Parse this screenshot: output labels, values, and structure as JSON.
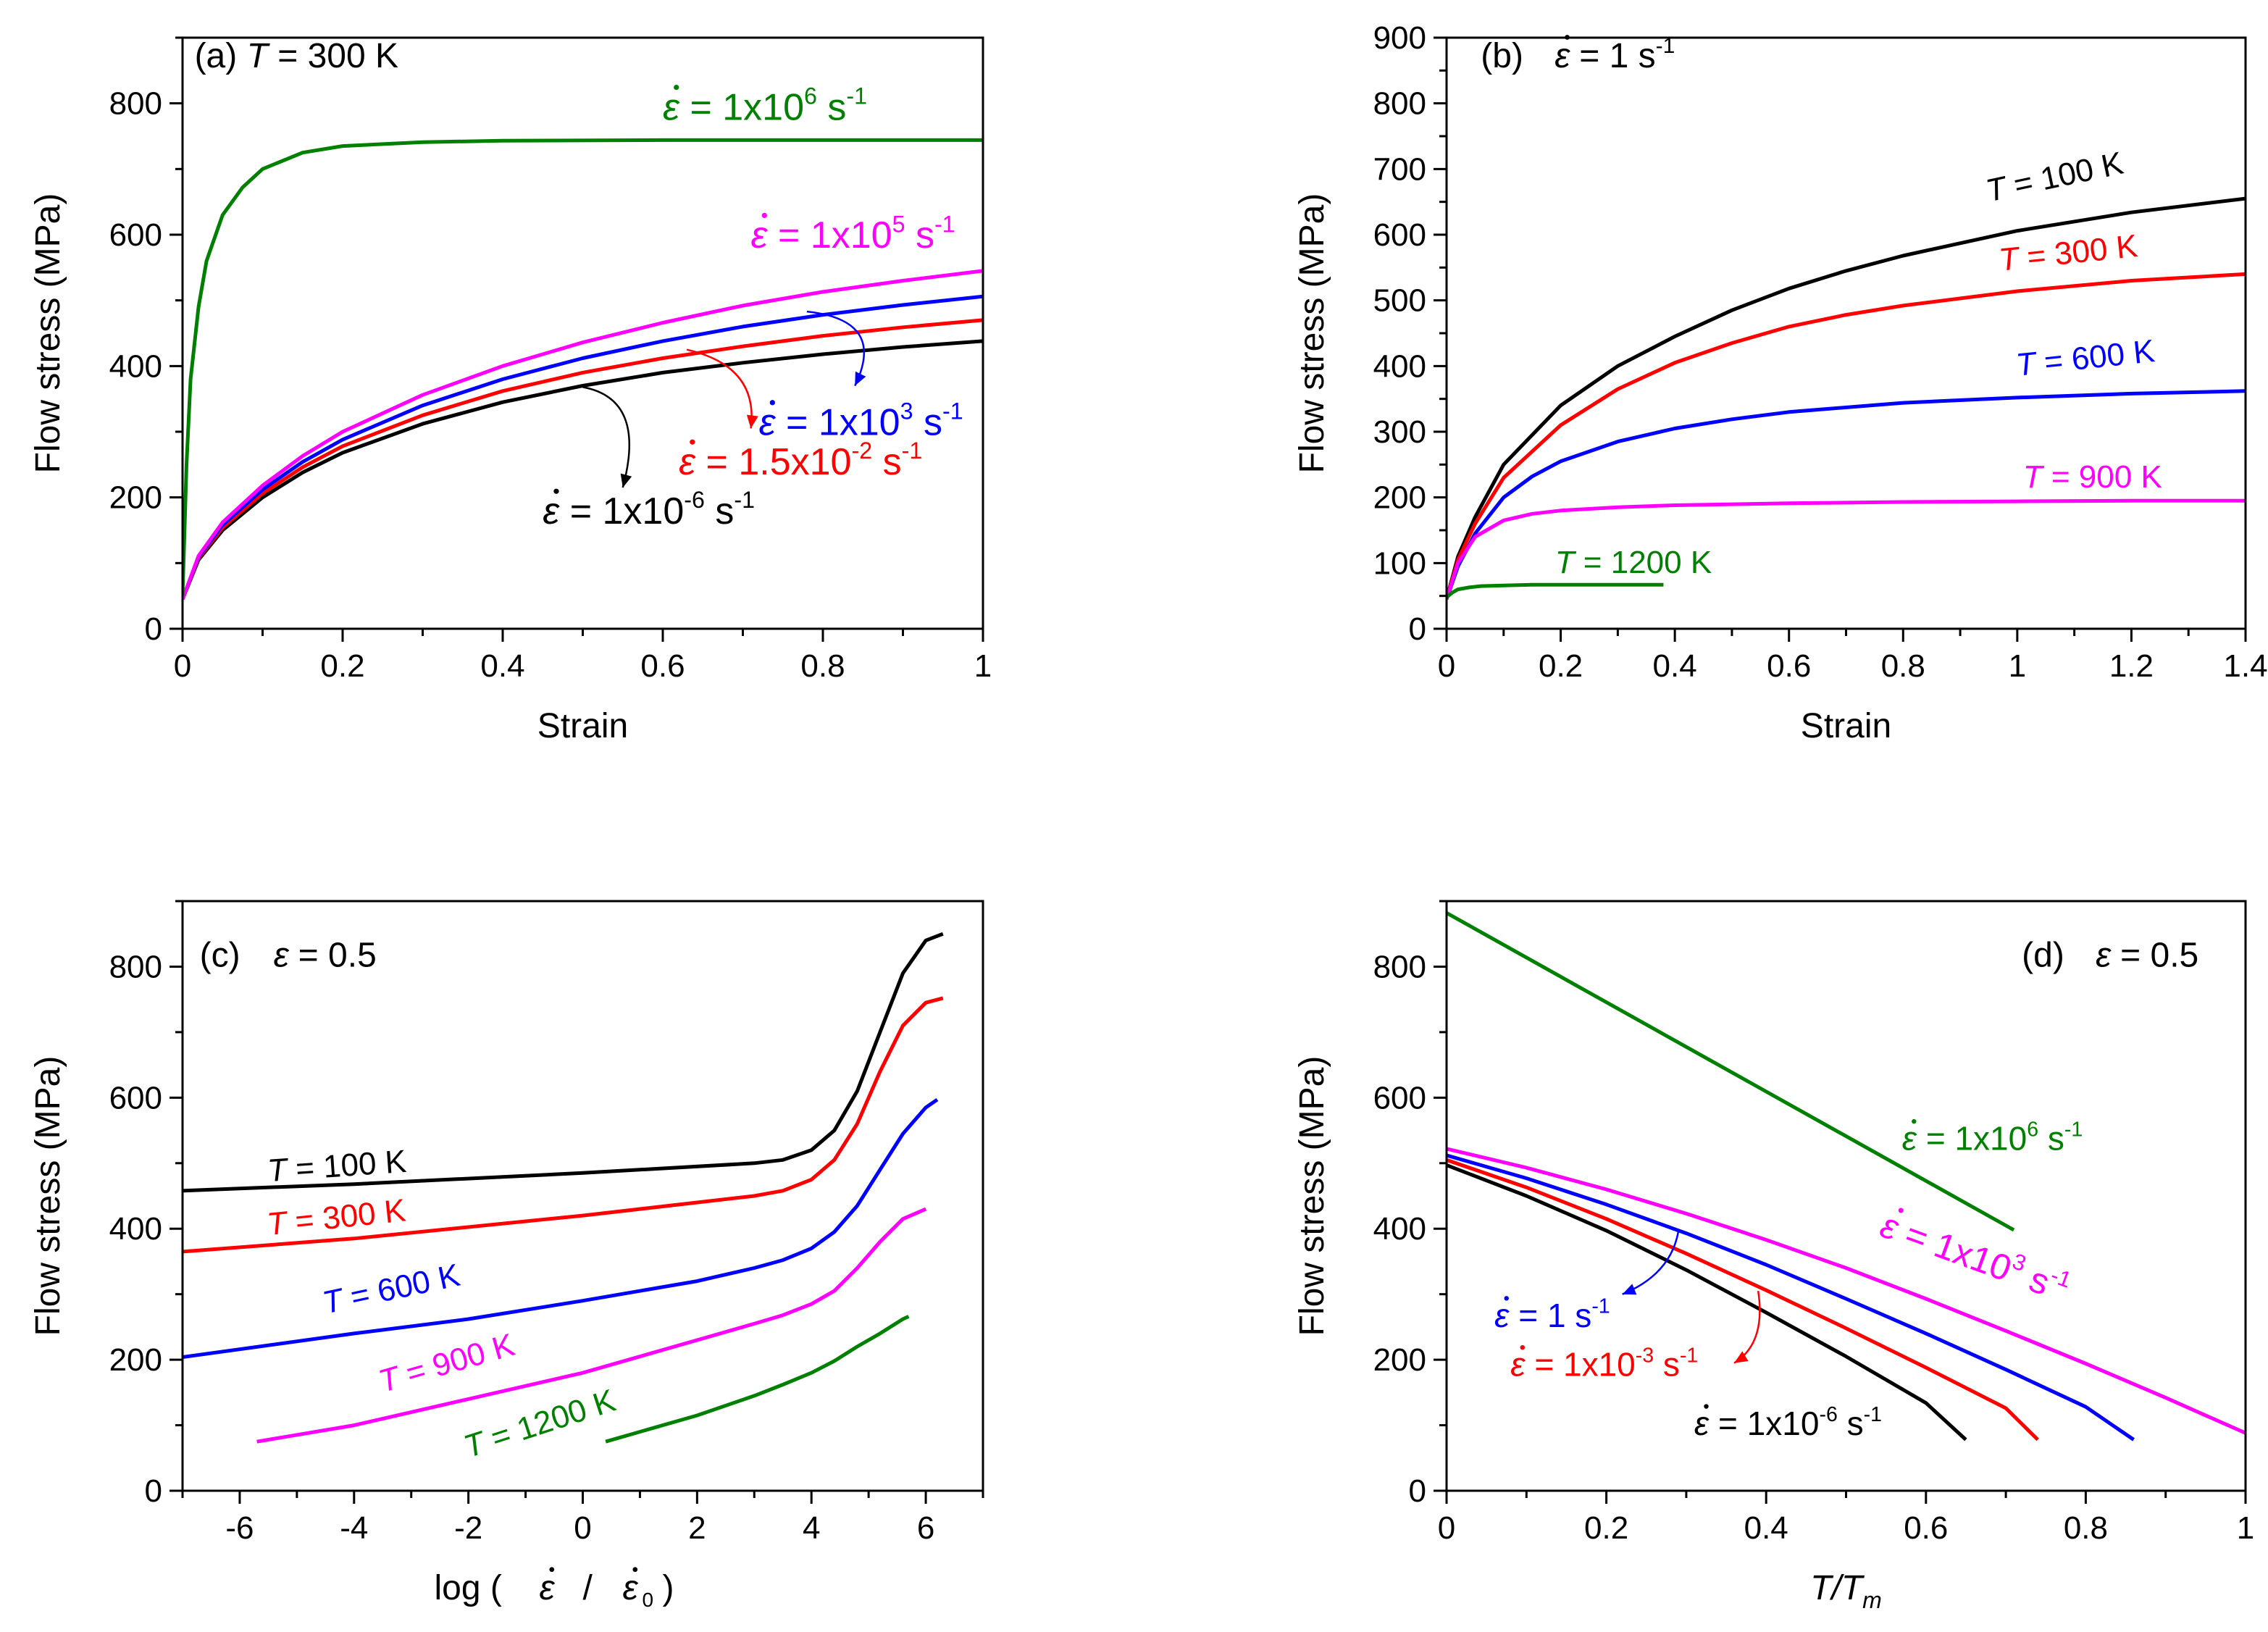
{
  "chart_data": [
    {
      "type": "line",
      "panel": "a",
      "title": {
        "prefix": "(a) ",
        "var": "T",
        "rest": " = 300 K"
      },
      "xlabel": "Strain",
      "ylabel": "Flow stress (MPa)",
      "xlim": [
        0,
        1
      ],
      "ylim": [
        0,
        900
      ],
      "xticks": [
        "0",
        "0.2",
        "0.4",
        "0.6",
        "0.8",
        "1"
      ],
      "yticks": [
        "0",
        "200",
        "400",
        "600",
        "800"
      ],
      "series": [
        {
          "name": "1x10^-6 s^-1",
          "color": "#000000",
          "x": [
            0,
            0.02,
            0.05,
            0.1,
            0.15,
            0.2,
            0.3,
            0.4,
            0.5,
            0.6,
            0.7,
            0.8,
            0.9,
            1.0
          ],
          "y": [
            45,
            105,
            150,
            200,
            238,
            268,
            312,
            345,
            370,
            390,
            405,
            418,
            429,
            438
          ]
        },
        {
          "name": "1.5x10^-2 s^-1",
          "color": "#ff0000",
          "x": [
            0,
            0.02,
            0.05,
            0.1,
            0.15,
            0.2,
            0.3,
            0.4,
            0.5,
            0.6,
            0.7,
            0.8,
            0.9,
            1.0
          ],
          "y": [
            45,
            107,
            154,
            206,
            246,
            278,
            325,
            362,
            390,
            412,
            430,
            446,
            459,
            470
          ]
        },
        {
          "name": "1x10^3 s^-1",
          "color": "#0000ff",
          "x": [
            0,
            0.02,
            0.05,
            0.1,
            0.15,
            0.2,
            0.3,
            0.4,
            0.5,
            0.6,
            0.7,
            0.8,
            0.9,
            1.0
          ],
          "y": [
            45,
            109,
            158,
            212,
            254,
            288,
            340,
            380,
            412,
            438,
            460,
            478,
            493,
            506
          ]
        },
        {
          "name": "1x10^5 s^-1",
          "color": "#ff00ff",
          "x": [
            0,
            0.02,
            0.05,
            0.1,
            0.15,
            0.2,
            0.3,
            0.4,
            0.5,
            0.6,
            0.7,
            0.8,
            0.9,
            1.0
          ],
          "y": [
            45,
            111,
            162,
            218,
            263,
            300,
            356,
            400,
            436,
            466,
            492,
            513,
            530,
            545
          ]
        },
        {
          "name": "1x10^6 s^-1",
          "color": "#008000",
          "x": [
            0,
            0.005,
            0.01,
            0.02,
            0.03,
            0.05,
            0.075,
            0.1,
            0.15,
            0.2,
            0.3,
            0.4,
            0.6,
            0.8,
            1.0
          ],
          "y": [
            50,
            250,
            380,
            490,
            560,
            630,
            672,
            700,
            725,
            735,
            741,
            743,
            744,
            744,
            744
          ]
        }
      ],
      "labels": [
        {
          "ref": "s4",
          "prefix": "= 1x10",
          "sup": "6",
          "unit": " s",
          "usup": "-1",
          "color": "#008000"
        },
        {
          "ref": "s3",
          "prefix": "= 1x10",
          "sup": "5",
          "unit": " s",
          "usup": "-1",
          "color": "#ff00ff"
        },
        {
          "ref": "s2",
          "prefix": "= 1x10",
          "sup": "3",
          "unit": " s",
          "usup": "-1",
          "color": "#0000ff"
        },
        {
          "ref": "s1",
          "prefix": "= 1.5x10",
          "sup": "-2",
          "unit": " s",
          "usup": "-1",
          "color": "#ff0000"
        },
        {
          "ref": "s0",
          "prefix": "= 1x10",
          "sup": "-6",
          "unit": " s",
          "usup": "-1",
          "color": "#000000"
        }
      ]
    },
    {
      "type": "line",
      "panel": "b",
      "title": {
        "prefix": "(b) ",
        "rest": "= 1 s",
        "usup": "-1"
      },
      "xlabel": "Strain",
      "ylabel": "Flow stress (MPa)",
      "xlim": [
        0,
        1.4
      ],
      "ylim": [
        0,
        900
      ],
      "xticks": [
        "0",
        "0.2",
        "0.4",
        "0.6",
        "0.8",
        "1",
        "1.2",
        "1.4"
      ],
      "yticks": [
        "0",
        "100",
        "200",
        "300",
        "400",
        "500",
        "600",
        "700",
        "800",
        "900"
      ],
      "series": [
        {
          "name": "T = 100 K",
          "color": "#000000",
          "x": [
            0,
            0.02,
            0.05,
            0.1,
            0.2,
            0.3,
            0.4,
            0.5,
            0.6,
            0.7,
            0.8,
            1.0,
            1.2,
            1.4
          ],
          "y": [
            45,
            110,
            170,
            250,
            340,
            400,
            445,
            485,
            518,
            545,
            568,
            606,
            634,
            655
          ]
        },
        {
          "name": "T = 300 K",
          "color": "#ff0000",
          "x": [
            0,
            0.02,
            0.05,
            0.1,
            0.2,
            0.3,
            0.4,
            0.5,
            0.6,
            0.7,
            0.8,
            1.0,
            1.2,
            1.4
          ],
          "y": [
            45,
            105,
            160,
            230,
            310,
            365,
            405,
            435,
            460,
            478,
            492,
            514,
            530,
            540
          ]
        },
        {
          "name": "T = 600 K",
          "color": "#0000ff",
          "x": [
            0,
            0.02,
            0.05,
            0.1,
            0.15,
            0.2,
            0.3,
            0.4,
            0.5,
            0.6,
            0.8,
            1.0,
            1.2,
            1.4
          ],
          "y": [
            45,
            95,
            145,
            200,
            232,
            255,
            285,
            305,
            319,
            330,
            344,
            352,
            358,
            362
          ]
        },
        {
          "name": "T = 900 K",
          "color": "#ff00ff",
          "x": [
            0,
            0.02,
            0.05,
            0.1,
            0.15,
            0.2,
            0.3,
            0.4,
            0.6,
            0.8,
            1.0,
            1.2,
            1.4
          ],
          "y": [
            45,
            100,
            140,
            165,
            175,
            180,
            185,
            188,
            191,
            193,
            194,
            195,
            195
          ]
        },
        {
          "name": "T = 1200 K",
          "color": "#008000",
          "x": [
            0,
            0.01,
            0.02,
            0.04,
            0.06,
            0.1,
            0.15,
            0.2,
            0.3,
            0.38
          ],
          "y": [
            48,
            55,
            60,
            63,
            65,
            66,
            67,
            67,
            67,
            67
          ]
        }
      ],
      "labels": [
        {
          "ref": "s0",
          "var": "T",
          "rest": " = 100 K",
          "color": "#000000"
        },
        {
          "ref": "s1",
          "var": "T",
          "rest": " = 300 K",
          "color": "#ff0000"
        },
        {
          "ref": "s2",
          "var": "T",
          "rest": " = 600 K",
          "color": "#0000ff"
        },
        {
          "ref": "s3",
          "var": "T",
          "rest": " = 900 K",
          "color": "#ff00ff"
        },
        {
          "ref": "s4",
          "var": "T",
          "rest": " = 1200 K",
          "color": "#008000"
        }
      ]
    },
    {
      "type": "line",
      "panel": "c",
      "title": {
        "prefix": "(c) ",
        "rest": " = 0.5"
      },
      "xlabel": {
        "prefix": "log ( ",
        "mid": " / ",
        "sub": "0",
        "suffix": ")"
      },
      "ylabel": "Flow stress (MPa)",
      "xlim": [
        -7,
        7
      ],
      "ylim": [
        0,
        900
      ],
      "xticks": [
        "-6",
        "-4",
        "-2",
        "0",
        "2",
        "4",
        "6"
      ],
      "yticks": [
        "0",
        "200",
        "400",
        "600",
        "800"
      ],
      "series": [
        {
          "name": "T = 100 K",
          "color": "#000000",
          "x": [
            -7,
            -4,
            0,
            3,
            3.5,
            4,
            4.4,
            4.8,
            5.2,
            5.6,
            6.0,
            6.3
          ],
          "y": [
            458,
            468,
            485,
            500,
            505,
            520,
            550,
            610,
            700,
            790,
            840,
            850
          ]
        },
        {
          "name": "T = 300 K",
          "color": "#ff0000",
          "x": [
            -7,
            -4,
            0,
            3,
            3.5,
            4,
            4.4,
            4.8,
            5.2,
            5.6,
            6.0,
            6.3
          ],
          "y": [
            365,
            385,
            420,
            450,
            458,
            475,
            505,
            560,
            640,
            710,
            745,
            752
          ]
        },
        {
          "name": "T = 600 K",
          "color": "#0000ff",
          "x": [
            -7,
            -4,
            -2,
            0,
            2,
            3,
            3.5,
            4,
            4.4,
            4.8,
            5.2,
            5.6,
            6.0,
            6.2
          ],
          "y": [
            204,
            240,
            262,
            290,
            320,
            340,
            352,
            370,
            395,
            435,
            490,
            545,
            585,
            597
          ]
        },
        {
          "name": "T = 900 K",
          "color": "#ff00ff",
          "x": [
            -5.7,
            -4,
            -2,
            0,
            2,
            3,
            3.5,
            4,
            4.4,
            4.8,
            5.2,
            5.6,
            6.0
          ],
          "y": [
            75,
            100,
            140,
            180,
            230,
            255,
            268,
            285,
            305,
            340,
            380,
            415,
            430
          ]
        },
        {
          "name": "T = 1200 K",
          "color": "#008000",
          "x": [
            0.4,
            1,
            2,
            3,
            3.5,
            4,
            4.4,
            4.8,
            5.2,
            5.6,
            5.7
          ],
          "y": [
            75,
            90,
            115,
            145,
            162,
            180,
            198,
            220,
            240,
            262,
            266
          ]
        }
      ],
      "labels": [
        {
          "ref": "s0",
          "var": "T",
          "rest": " = 100 K",
          "color": "#000000"
        },
        {
          "ref": "s1",
          "var": "T",
          "rest": " = 300 K",
          "color": "#ff0000"
        },
        {
          "ref": "s2",
          "var": "T",
          "rest": " = 600 K",
          "color": "#0000ff"
        },
        {
          "ref": "s3",
          "var": "T",
          "rest": " = 900 K",
          "color": "#ff00ff"
        },
        {
          "ref": "s4",
          "var": "T",
          "rest": " = 1200 K",
          "color": "#008000"
        }
      ]
    },
    {
      "type": "line",
      "panel": "d",
      "title": {
        "prefix": "(d) ",
        "rest": " = 0.5"
      },
      "xlabel": {
        "var": "T/T",
        "sub": "m"
      },
      "ylabel": "Flow stress (MPa)",
      "xlim": [
        0,
        1
      ],
      "ylim": [
        0,
        900
      ],
      "xticks": [
        "0",
        "0.2",
        "0.4",
        "0.6",
        "0.8",
        "1"
      ],
      "yticks": [
        "0",
        "200",
        "400",
        "600",
        "800"
      ],
      "series": [
        {
          "name": "1x10^6 s^-1",
          "color": "#008000",
          "x": [
            0,
            0.71
          ],
          "y": [
            882,
            398
          ]
        },
        {
          "name": "1x10^3 s^-1",
          "color": "#ff00ff",
          "x": [
            0,
            0.1,
            0.2,
            0.3,
            0.4,
            0.5,
            0.6,
            0.7,
            0.8,
            0.9,
            1.0
          ],
          "y": [
            522,
            493,
            460,
            423,
            383,
            340,
            293,
            244,
            194,
            142,
            88
          ]
        },
        {
          "name": "1 s^-1",
          "color": "#0000ff",
          "x": [
            0,
            0.1,
            0.2,
            0.3,
            0.4,
            0.5,
            0.6,
            0.7,
            0.8,
            0.86
          ],
          "y": [
            512,
            477,
            437,
            393,
            345,
            293,
            240,
            185,
            128,
            78
          ]
        },
        {
          "name": "1x10^-3 s^-1",
          "color": "#ff0000",
          "x": [
            0,
            0.1,
            0.2,
            0.3,
            0.4,
            0.5,
            0.6,
            0.7,
            0.74
          ],
          "y": [
            505,
            463,
            415,
            362,
            306,
            248,
            188,
            126,
            78
          ]
        },
        {
          "name": "1x10^-6 s^-1",
          "color": "#000000",
          "x": [
            0,
            0.1,
            0.2,
            0.3,
            0.4,
            0.5,
            0.6,
            0.65
          ],
          "y": [
            497,
            450,
            397,
            337,
            272,
            205,
            134,
            78
          ]
        }
      ],
      "labels": [
        {
          "ref": "s0",
          "prefix": "= 1x10",
          "sup": "6",
          "unit": " s",
          "usup": "-1",
          "color": "#008000"
        },
        {
          "ref": "s1",
          "prefix": "= 1x10",
          "sup": "3",
          "unit": " s",
          "usup": "-1",
          "color": "#ff00ff"
        },
        {
          "ref": "s2",
          "prefix": "= 1 s",
          "usup": "-1",
          "color": "#0000ff"
        },
        {
          "ref": "s3",
          "prefix": "= 1x10",
          "sup": "-3",
          "unit": " s",
          "usup": "-1",
          "color": "#ff0000"
        },
        {
          "ref": "s4",
          "prefix": "= 1x10",
          "sup": "-6",
          "unit": " s",
          "usup": "-1",
          "color": "#000000"
        }
      ]
    }
  ]
}
